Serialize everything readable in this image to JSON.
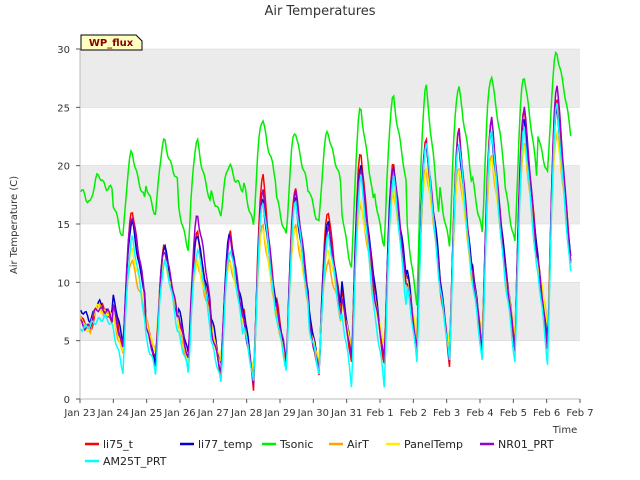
{
  "chart_data": {
    "type": "line",
    "title": "Air Temperatures",
    "xlabel": "Time",
    "ylabel": "Air Temperature (C)",
    "annotation": "WP_flux",
    "ylim": [
      0,
      30
    ],
    "yticks": [
      0,
      5,
      10,
      15,
      20,
      25,
      30
    ],
    "xlim_days": [
      0,
      15
    ],
    "xtick_labels": [
      "Jan 23",
      "Jan 24",
      "Jan 25",
      "Jan 26",
      "Jan 27",
      "Jan 28",
      "Jan 29",
      "Jan 30",
      "Jan 31",
      "Feb 1",
      "Feb 2",
      "Feb 3",
      "Feb 4",
      "Feb 5",
      "Feb 6",
      "Feb 7"
    ],
    "grid": "horizontal bands",
    "legend_position": "bottom",
    "series": [
      {
        "name": "li75_t",
        "color": "#ff0000",
        "daily_min": [
          6,
          4,
          3,
          3,
          2,
          1,
          3,
          2,
          3,
          3,
          4,
          3,
          4,
          4,
          4
        ],
        "daily_max": [
          8,
          16,
          13,
          14,
          14,
          19,
          18,
          16,
          21,
          20,
          22,
          23,
          24,
          25,
          26
        ]
      },
      {
        "name": "li77_temp",
        "color": "#0000cc",
        "daily_min": [
          7,
          5,
          3,
          4,
          3,
          2,
          3,
          3,
          4,
          4,
          5,
          4,
          5,
          5,
          5
        ],
        "daily_max": [
          8,
          15,
          13,
          14,
          14,
          17,
          17,
          15,
          20,
          20,
          22,
          22,
          23,
          24,
          25
        ]
      },
      {
        "name": "Tsonic",
        "color": "#00ee00",
        "daily_min": [
          17,
          14,
          16,
          13,
          16,
          15,
          14,
          15,
          11,
          13,
          8,
          13,
          14,
          13,
          19
        ],
        "daily_max": [
          19,
          21,
          22,
          22,
          20,
          24,
          23,
          23,
          25,
          26,
          27,
          27,
          28,
          28,
          30
        ]
      },
      {
        "name": "AirT",
        "color": "#ffa500",
        "daily_min": [
          6,
          4,
          4,
          3,
          3,
          2,
          3,
          3,
          4,
          4,
          5,
          4,
          5,
          5,
          6
        ],
        "daily_max": [
          8,
          12,
          12,
          12,
          12,
          15,
          15,
          12,
          17,
          18,
          20,
          20,
          21,
          22,
          23
        ]
      },
      {
        "name": "PanelTemp",
        "color": "#ffee00",
        "daily_min": [
          6,
          4,
          4,
          3,
          3,
          2,
          3,
          3,
          4,
          4,
          5,
          4,
          5,
          5,
          6
        ],
        "daily_max": [
          8,
          13,
          12,
          12,
          12,
          15,
          15,
          13,
          17,
          18,
          20,
          20,
          21,
          22,
          23
        ]
      },
      {
        "name": "NR01_PRT",
        "color": "#9900cc",
        "daily_min": [
          6,
          4,
          3,
          3,
          2,
          1,
          3,
          2,
          3,
          3,
          4,
          3,
          4,
          4,
          4
        ],
        "daily_max": [
          8,
          16,
          13,
          16,
          14,
          18,
          18,
          15,
          20,
          20,
          22,
          23,
          24,
          25,
          27
        ]
      },
      {
        "name": "AM25T_PRT",
        "color": "#00ffff",
        "daily_min": [
          6,
          2,
          2,
          2,
          1,
          1,
          2,
          2,
          1,
          1,
          3,
          3,
          3,
          3,
          3
        ],
        "daily_max": [
          7,
          14,
          12,
          13,
          13,
          17,
          17,
          14,
          19,
          19,
          22,
          22,
          23,
          23,
          25
        ]
      }
    ]
  }
}
